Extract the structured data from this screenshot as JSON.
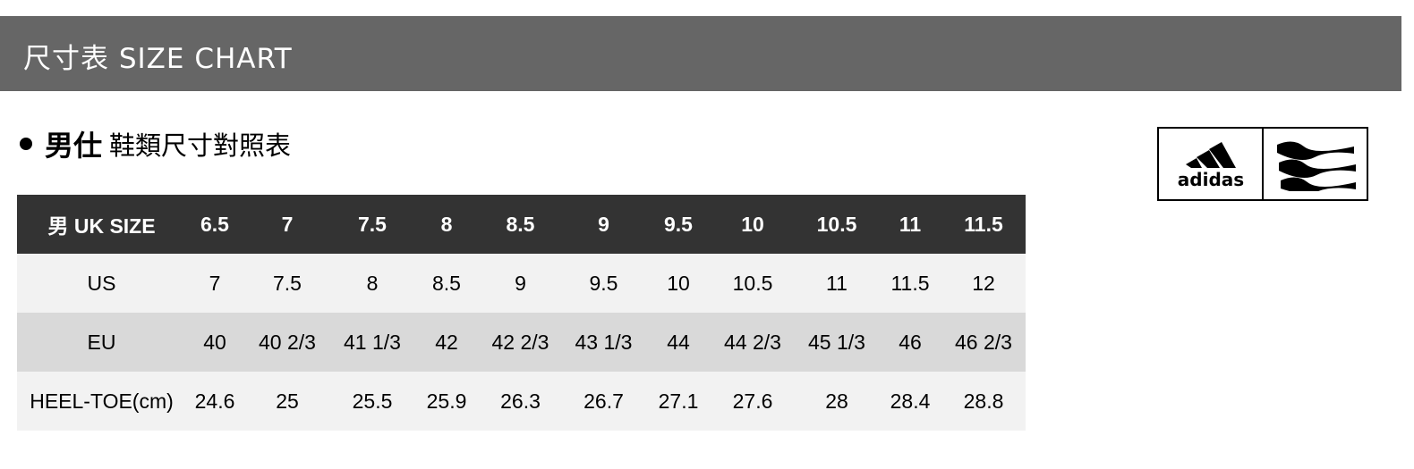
{
  "banner": {
    "title": "尺寸表 SIZE CHART"
  },
  "section": {
    "title_bold": "男仕",
    "title_rest": "鞋類尺寸對照表"
  },
  "logo": {
    "brand": "adidas",
    "icons": [
      "adidas-performance-logo",
      "adidas-golf-wave-logo"
    ]
  },
  "table": {
    "header": [
      "男 UK SIZE",
      "6.5",
      "7",
      "7.5",
      "8",
      "8.5",
      "9",
      "9.5",
      "10",
      "10.5",
      "11",
      "11.5"
    ],
    "rows": [
      [
        "US",
        "7",
        "7.5",
        "8",
        "8.5",
        "9",
        "9.5",
        "10",
        "10.5",
        "11",
        "11.5",
        "12"
      ],
      [
        "EU",
        "40",
        "40 2/3",
        "41 1/3",
        "42",
        "42 2/3",
        "43 1/3",
        "44",
        "44 2/3",
        "45 1/3",
        "46",
        "46 2/3"
      ],
      [
        "HEEL-TOE(cm)",
        "24.6",
        "25",
        "25.5",
        "25.9",
        "26.3",
        "26.7",
        "27.1",
        "27.6",
        "28",
        "28.4",
        "28.8"
      ]
    ]
  },
  "colors": {
    "banner": "#666666",
    "header_row": "#333333",
    "row_light": "#f2f2f2",
    "row_dark": "#d9d9d9"
  }
}
